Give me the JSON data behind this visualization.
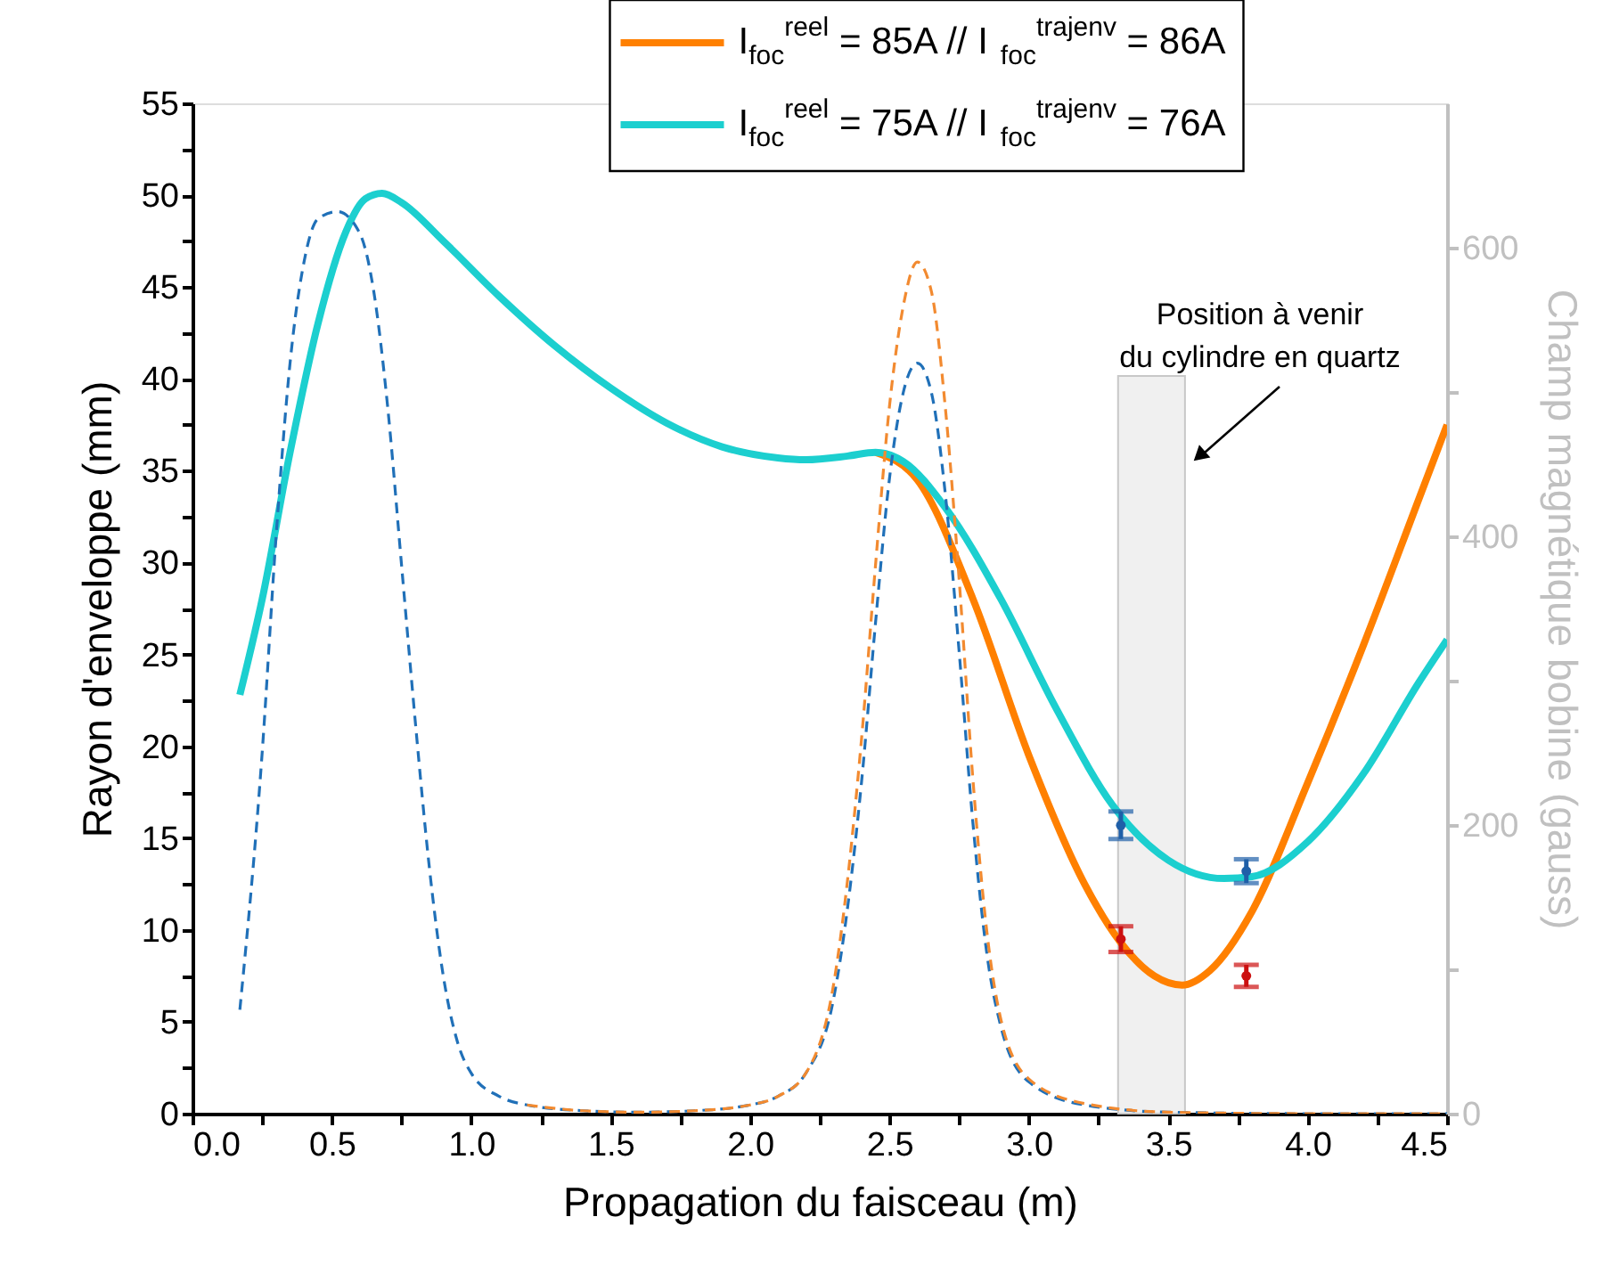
{
  "chart_data": {
    "type": "line",
    "xlabel": "Propagation du faisceau (m)",
    "ylabel": "Rayon d'enveloppe (mm)",
    "y2label": "Champ magnétique bobine (gauss)",
    "xlim": [
      0,
      4.5
    ],
    "ylim": [
      0,
      55
    ],
    "y2lim": [
      0,
      700
    ],
    "xticks": [
      {
        "value": 0,
        "label": "0.0"
      },
      {
        "value": 0.25,
        "label": null
      },
      {
        "value": 0.5,
        "label": "0.5"
      },
      {
        "value": 0.75,
        "label": null
      },
      {
        "value": 1,
        "label": "1.0"
      },
      {
        "value": 1.25,
        "label": null
      },
      {
        "value": 1.5,
        "label": "1.5"
      },
      {
        "value": 1.75,
        "label": null
      },
      {
        "value": 2,
        "label": "2.0"
      },
      {
        "value": 2.25,
        "label": null
      },
      {
        "value": 2.5,
        "label": "2.5"
      },
      {
        "value": 2.75,
        "label": null
      },
      {
        "value": 3,
        "label": "3.0"
      },
      {
        "value": 3.25,
        "label": null
      },
      {
        "value": 3.5,
        "label": "3.5"
      },
      {
        "value": 3.75,
        "label": null
      },
      {
        "value": 4,
        "label": "4.0"
      },
      {
        "value": 4.25,
        "label": null
      },
      {
        "value": 4.5,
        "label": "4.5"
      }
    ],
    "yticks": [
      0,
      {
        "value": 2.5,
        "label": null
      },
      5,
      {
        "value": 7.5,
        "label": null
      },
      10,
      {
        "value": 12.5,
        "label": null
      },
      15,
      {
        "value": 17.5,
        "label": null
      },
      20,
      {
        "value": 22.5,
        "label": null
      },
      25,
      {
        "value": 27.5,
        "label": null
      },
      30,
      {
        "value": 32.5,
        "label": null
      },
      35,
      {
        "value": 37.5,
        "label": null
      },
      40,
      {
        "value": 42.5,
        "label": null
      },
      45,
      {
        "value": 47.5,
        "label": null
      },
      50,
      {
        "value": 52.5,
        "label": null
      },
      55
    ],
    "y2ticks": [
      0,
      {
        "value": 100,
        "label": null
      },
      200,
      {
        "value": 300,
        "label": null
      },
      400,
      {
        "value": 500,
        "label": null
      },
      600
    ],
    "grid": false,
    "legend": "top",
    "series": [
      {
        "name": "I$_{foc}$$^{reel}$ = 85A //  I$_{foc}$$^{trajenv}$ = 86A",
        "color": "#ff8000",
        "line_style": "solid",
        "x": [
          2.45,
          2.6,
          2.8,
          3.0,
          3.2,
          3.33,
          3.45,
          3.55,
          3.65,
          3.8,
          4.0,
          4.2,
          4.4,
          4.5
        ],
        "values": [
          36,
          34.5,
          28,
          19.5,
          12.5,
          9.3,
          7.5,
          7.0,
          7.8,
          11,
          18,
          25.5,
          33.5,
          37.5
        ]
      },
      {
        "name": "I$_{foc}$$^{reel}$ = 75A //  I$_{foc}$$^{trajenv}$ = 76A",
        "color": "#1ccfcf",
        "line_style": "solid",
        "x": [
          0.17,
          0.25,
          0.35,
          0.45,
          0.55,
          0.62,
          0.68,
          0.75,
          0.9,
          1.1,
          1.3,
          1.5,
          1.7,
          1.9,
          2.1,
          2.2,
          2.35,
          2.45,
          2.55,
          2.7,
          2.9,
          3.1,
          3.3,
          3.5,
          3.7,
          3.8,
          4.0,
          4.2,
          4.4,
          4.5
        ],
        "values": [
          22.8,
          28,
          36,
          43,
          48,
          49.8,
          50.1,
          49.6,
          47.5,
          44.5,
          41.8,
          39.5,
          37.6,
          36.3,
          35.7,
          35.6,
          35.8,
          36.0,
          35.5,
          33,
          28,
          22,
          16.8,
          13.8,
          12.8,
          12.9,
          14.8,
          18.5,
          23.5,
          25.8
        ]
      },
      {
        "type": "scatter",
        "color": "#1f5fa8",
        "x": [
          3.33,
          3.78
        ],
        "values": [
          15.7,
          13.2
        ],
        "errors": [
          0.75,
          0.65
        ]
      },
      {
        "type": "scatter",
        "color": "#cc1010",
        "x": [
          3.33,
          3.78
        ],
        "values": [
          9.5,
          7.5
        ],
        "errors": [
          0.7,
          0.6
        ]
      },
      {
        "axis": "y2",
        "color": "#2070b8",
        "line_style": "dashed",
        "x": [
          0.17,
          0.25,
          0.3,
          0.35,
          0.4,
          0.45,
          0.52,
          0.6,
          0.65,
          0.7,
          0.75,
          0.8,
          0.85,
          0.9,
          0.95,
          1.0,
          1.1,
          1.2,
          1.4,
          1.6,
          1.8,
          2.0,
          2.1,
          2.2,
          2.3,
          2.4,
          2.45,
          2.5,
          2.55,
          2.6,
          2.65,
          2.7,
          2.75,
          2.8,
          2.85,
          2.9,
          3.0,
          3.2,
          3.5,
          4.0,
          4.5
        ],
        "values": [
          72,
          250,
          400,
          520,
          590,
          620,
          625,
          610,
          570,
          490,
          380,
          270,
          170,
          95,
          50,
          28,
          12,
          6,
          2,
          1,
          2,
          6,
          12,
          28,
          80,
          230,
          340,
          440,
          500,
          520,
          500,
          430,
          320,
          200,
          110,
          60,
          22,
          6,
          1,
          0,
          0
        ]
      },
      {
        "axis": "y2",
        "color": "#f28a30",
        "line_style": "dashed",
        "x": [
          1.2,
          1.4,
          1.6,
          1.8,
          2.0,
          2.1,
          2.2,
          2.3,
          2.4,
          2.45,
          2.5,
          2.55,
          2.6,
          2.65,
          2.7,
          2.75,
          2.8,
          2.85,
          2.9,
          3.0,
          3.2,
          3.5,
          4.0,
          4.5
        ],
        "values": [
          6,
          2,
          1,
          2,
          6,
          12,
          28,
          90,
          260,
          380,
          490,
          560,
          590,
          570,
          490,
          370,
          230,
          125,
          65,
          24,
          7,
          1,
          0,
          0
        ]
      }
    ],
    "bands": [
      {
        "axis": "x",
        "from": 3.32,
        "to": 3.56,
        "color": "#f0f0f0"
      }
    ],
    "annotations": [
      "Position à venir\ndu cylindre en quartz"
    ]
  }
}
